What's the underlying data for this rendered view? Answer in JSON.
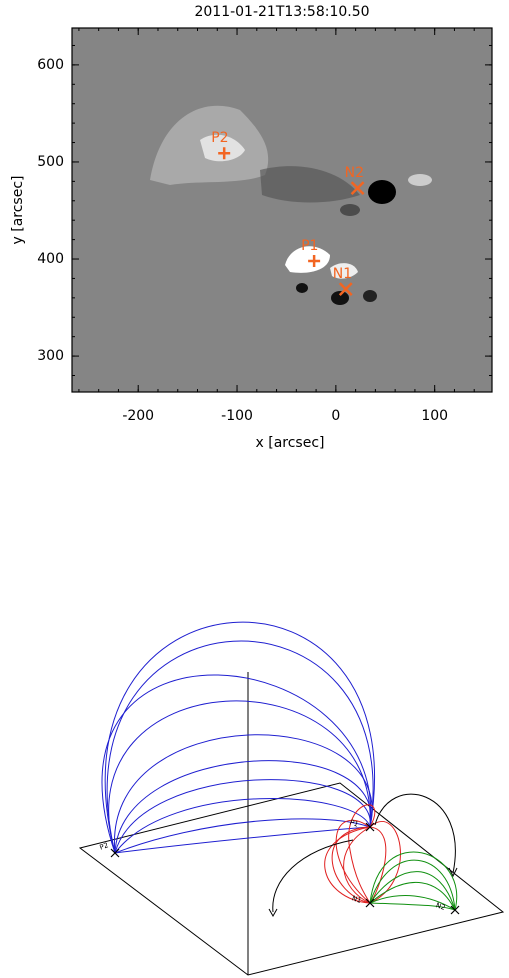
{
  "chart_data": [
    {
      "type": "scatter",
      "title": "2011-01-21T13:58:10.50",
      "xlabel": "x [arcsec]",
      "ylabel": "y [arcsec]",
      "xlim": [
        -267,
        158
      ],
      "ylim": [
        263,
        638
      ],
      "xticks": [
        -200,
        -100,
        0,
        100
      ],
      "yticks": [
        300,
        400,
        500,
        600
      ],
      "color": "#f26522",
      "points": [
        {
          "label": "P2",
          "x": -113,
          "y": 509,
          "marker": "+"
        },
        {
          "label": "N2",
          "x": 22,
          "y": 473,
          "marker": "x"
        },
        {
          "label": "P1",
          "x": -22,
          "y": 398,
          "marker": "+"
        },
        {
          "label": "N1",
          "x": 10,
          "y": 369,
          "marker": "x"
        }
      ]
    }
  ],
  "diagram": {
    "labels": [
      "P2",
      "P1",
      "N1",
      "N2"
    ]
  }
}
